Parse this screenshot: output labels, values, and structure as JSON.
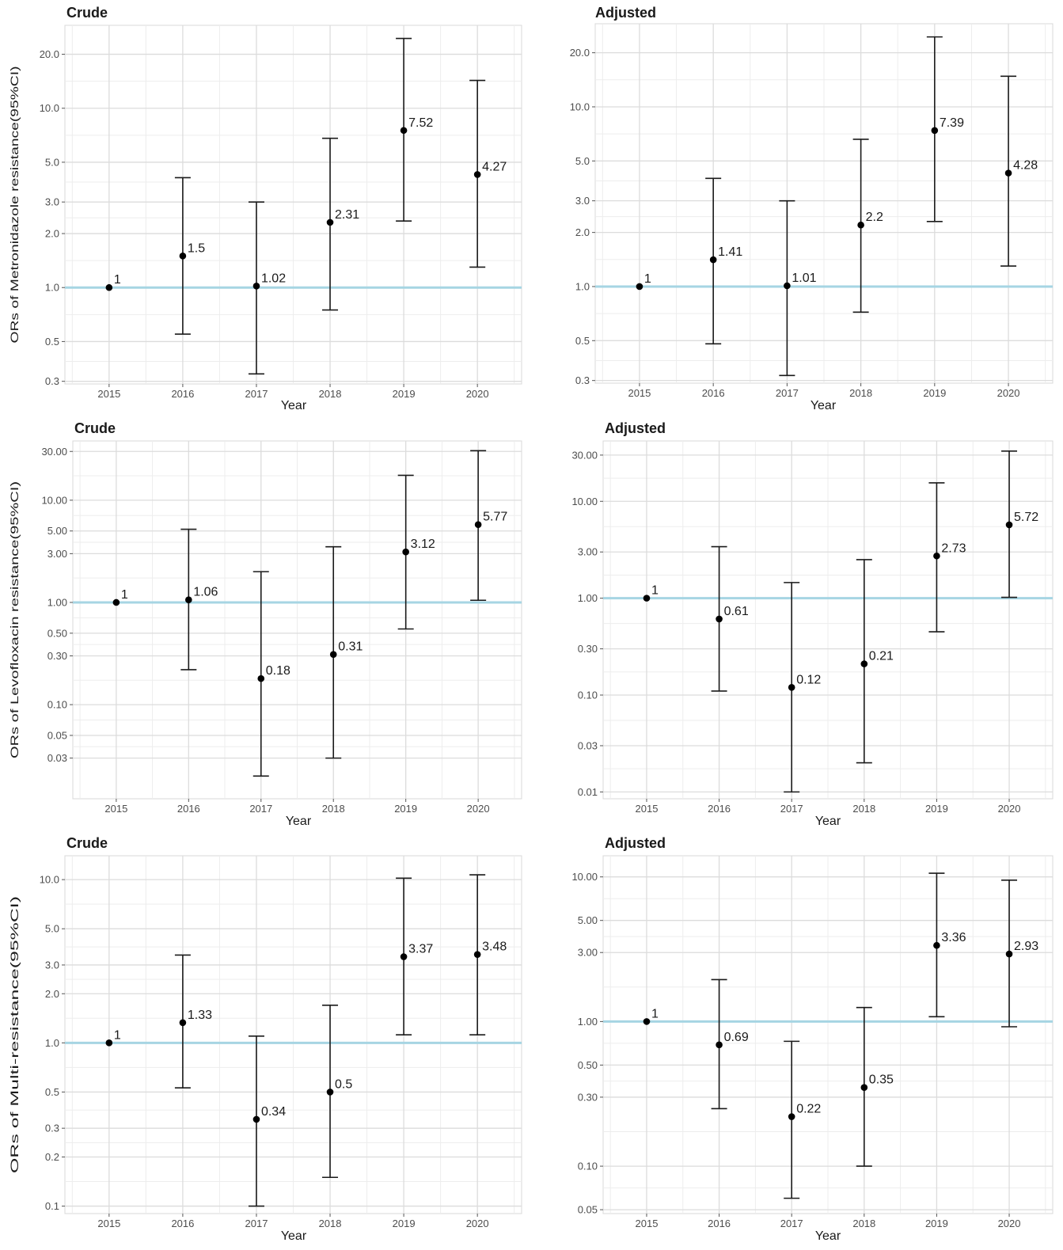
{
  "chart_data": [
    {
      "type": "errorbar",
      "title": "Crude",
      "xlabel": "Year",
      "ylabel": "ORs of Metronidazole resistance(95%CI)",
      "y_scale": "log",
      "ylim": [
        0.29,
        29
      ],
      "y_ticks": [
        0.3,
        0.5,
        1,
        2,
        3,
        5,
        10,
        20
      ],
      "y_tick_labels": [
        "0.3",
        "0.5",
        "1.0",
        "2.0",
        "3.0",
        "5.0",
        "10.0",
        "20.0"
      ],
      "reference_line": 1,
      "reference_color": "#a6d5e3",
      "categories": [
        "2015",
        "2016",
        "2017",
        "2018",
        "2019",
        "2020"
      ],
      "or": [
        1,
        1.5,
        1.02,
        2.31,
        7.52,
        4.27
      ],
      "lower": [
        1,
        0.55,
        0.33,
        0.75,
        2.35,
        1.3
      ],
      "upper": [
        1,
        4.1,
        3.0,
        6.8,
        24.5,
        14.3
      ],
      "labels": [
        "1",
        "1.5",
        "1.02",
        "2.31",
        "7.52",
        "4.27"
      ]
    },
    {
      "type": "errorbar",
      "title": "Adjusted",
      "xlabel": "Year",
      "ylabel": "",
      "y_scale": "log",
      "ylim": [
        0.29,
        29
      ],
      "y_ticks": [
        0.3,
        0.5,
        1,
        2,
        3,
        5,
        10,
        20
      ],
      "y_tick_labels": [
        "0.3",
        "0.5",
        "1.0",
        "2.0",
        "3.0",
        "5.0",
        "10.0",
        "20.0"
      ],
      "reference_line": 1,
      "reference_color": "#a6d5e3",
      "categories": [
        "2015",
        "2016",
        "2017",
        "2018",
        "2019",
        "2020"
      ],
      "or": [
        1,
        1.41,
        1.01,
        2.2,
        7.39,
        4.28
      ],
      "lower": [
        1,
        0.48,
        0.32,
        0.72,
        2.3,
        1.3
      ],
      "upper": [
        1,
        4.0,
        3.0,
        6.6,
        24.5,
        14.8
      ],
      "labels": [
        "1",
        "1.41",
        "1.01",
        "2.2",
        "7.39",
        "4.28"
      ]
    },
    {
      "type": "errorbar",
      "title": "Crude",
      "xlabel": "Year",
      "ylabel": "ORs of Levofloxacin resistance(95%CI)",
      "y_scale": "log",
      "ylim": [
        0.012,
        38
      ],
      "y_ticks": [
        0.03,
        0.05,
        0.1,
        0.3,
        0.5,
        1,
        3,
        5,
        10,
        30
      ],
      "y_tick_labels": [
        "0.03",
        "0.05",
        "0.10",
        "0.30",
        "0.50",
        "1.00",
        "3.00",
        "5.00",
        "10.00",
        "30.00"
      ],
      "reference_line": 1,
      "reference_color": "#a6d5e3",
      "categories": [
        "2015",
        "2016",
        "2017",
        "2018",
        "2019",
        "2020"
      ],
      "or": [
        1,
        1.06,
        0.18,
        0.31,
        3.12,
        5.77
      ],
      "lower": [
        1,
        0.22,
        0.02,
        0.03,
        0.55,
        1.05
      ],
      "upper": [
        1,
        5.2,
        2.0,
        3.5,
        17.5,
        30.5
      ],
      "labels": [
        "1",
        "1.06",
        "0.18",
        "0.31",
        "3.12",
        "5.77"
      ]
    },
    {
      "type": "errorbar",
      "title": "Adjusted",
      "xlabel": "Year",
      "ylabel": "",
      "y_scale": "log",
      "ylim": [
        0.0085,
        42
      ],
      "y_ticks": [
        0.01,
        0.03,
        0.1,
        0.3,
        1,
        3,
        10,
        30
      ],
      "y_tick_labels": [
        "0.01",
        "0.03",
        "0.10",
        "0.30",
        "1.00",
        "3.00",
        "10.00",
        "30.00"
      ],
      "reference_line": 1,
      "reference_color": "#a6d5e3",
      "categories": [
        "2015",
        "2016",
        "2017",
        "2018",
        "2019",
        "2020"
      ],
      "or": [
        1,
        0.61,
        0.12,
        0.21,
        2.73,
        5.72
      ],
      "lower": [
        1,
        0.11,
        0.01,
        0.02,
        0.45,
        1.02
      ],
      "upper": [
        1,
        3.4,
        1.45,
        2.5,
        15.5,
        33
      ],
      "labels": [
        "1",
        "0.61",
        "0.12",
        "0.21",
        "2.73",
        "5.72"
      ]
    },
    {
      "type": "errorbar",
      "title": "Crude",
      "xlabel": "Year",
      "ylabel": "ORs of Multi-resistance(95%CI)",
      "y_scale": "log",
      "ylim": [
        0.09,
        14
      ],
      "y_ticks": [
        0.1,
        0.2,
        0.3,
        0.5,
        1,
        2,
        3,
        5,
        10
      ],
      "y_tick_labels": [
        "0.1",
        "0.2",
        "0.3",
        "0.5",
        "1.0",
        "2.0",
        "3.0",
        "5.0",
        "10.0"
      ],
      "reference_line": 1,
      "reference_color": "#a6d5e3",
      "categories": [
        "2015",
        "2016",
        "2017",
        "2018",
        "2019",
        "2020"
      ],
      "or": [
        1,
        1.33,
        0.34,
        0.5,
        3.37,
        3.48
      ],
      "lower": [
        1,
        0.53,
        0.1,
        0.15,
        1.12,
        1.12
      ],
      "upper": [
        1,
        3.45,
        1.1,
        1.7,
        10.2,
        10.7
      ],
      "labels": [
        "1",
        "1.33",
        "0.34",
        "0.5",
        "3.37",
        "3.48"
      ]
    },
    {
      "type": "errorbar",
      "title": "Adjusted",
      "xlabel": "Year",
      "ylabel": "",
      "y_scale": "log",
      "ylim": [
        0.047,
        14
      ],
      "y_ticks": [
        0.05,
        0.1,
        0.3,
        0.5,
        1,
        3,
        5,
        10
      ],
      "y_tick_labels": [
        "0.05",
        "0.10",
        "0.30",
        "0.50",
        "1.00",
        "3.00",
        "5.00",
        "10.00"
      ],
      "reference_line": 1,
      "reference_color": "#a6d5e3",
      "categories": [
        "2015",
        "2016",
        "2017",
        "2018",
        "2019",
        "2020"
      ],
      "or": [
        1,
        0.69,
        0.22,
        0.35,
        3.36,
        2.93
      ],
      "lower": [
        1,
        0.25,
        0.06,
        0.1,
        1.08,
        0.92
      ],
      "upper": [
        1,
        1.95,
        0.73,
        1.25,
        10.6,
        9.5
      ],
      "labels": [
        "1",
        "0.69",
        "0.22",
        "0.35",
        "3.36",
        "2.93"
      ]
    }
  ]
}
